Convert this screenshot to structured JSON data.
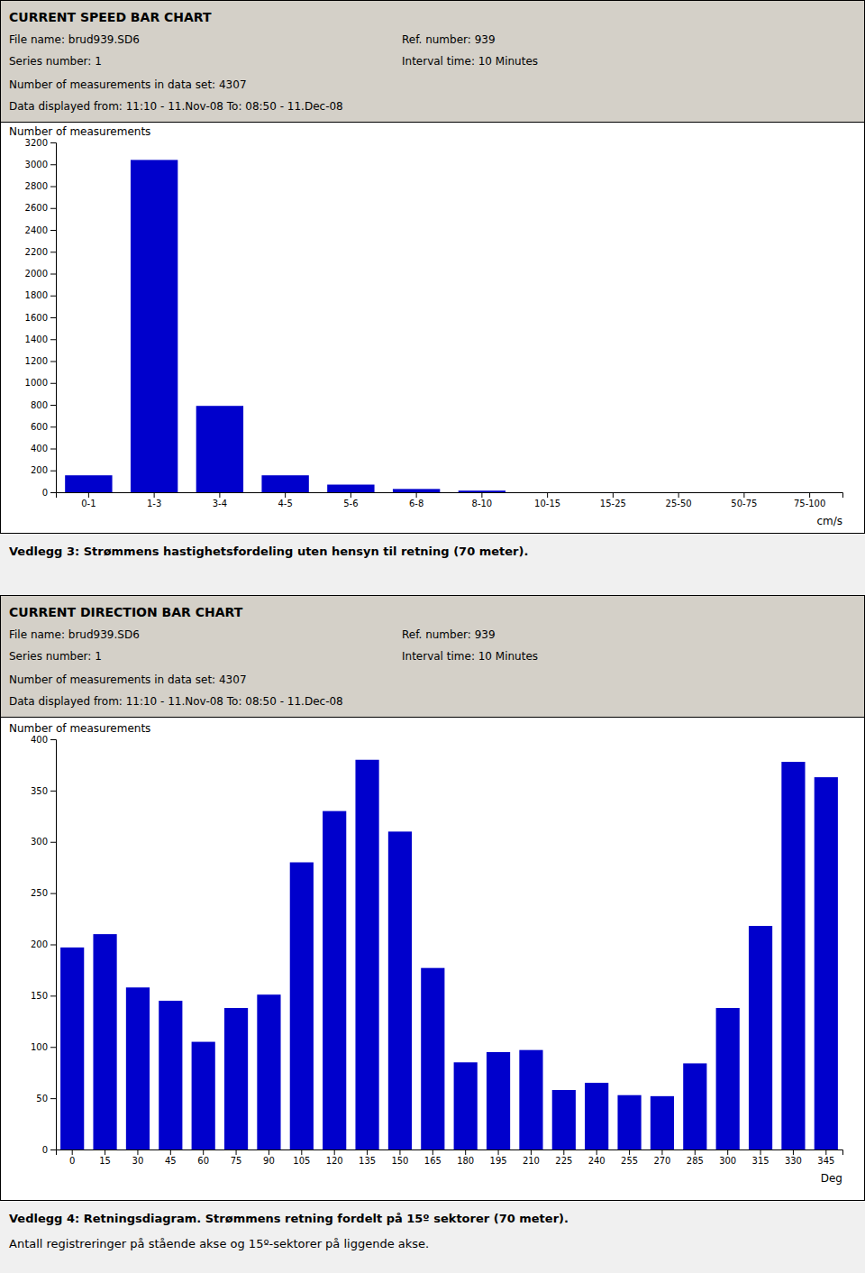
{
  "chart_data": [
    {
      "type": "bar",
      "title": "CURRENT SPEED BAR CHART",
      "subtitle": [
        "File name: brud939.SD6",
        "Series number: 1",
        "Number of measurements in data set: 4307",
        "Data displayed from: 11:10 - 11.Nov-08   To: 08:50 - 11.Dec-08",
        "Ref. number: 939",
        "Interval time: 10 Minutes"
      ],
      "ylabel": "Number of measurements",
      "xlabel": "cm/s",
      "categories": [
        "0-1",
        "1-3",
        "3-4",
        "4-5",
        "5-6",
        "6-8",
        "8-10",
        "10-15",
        "15-25",
        "25-50",
        "50-75",
        "75-100"
      ],
      "values": [
        155,
        3040,
        790,
        155,
        70,
        30,
        15,
        0,
        0,
        0,
        0,
        0
      ],
      "color": "#0000cc",
      "ylim": [
        0,
        3200
      ],
      "yticks": [
        0,
        200,
        400,
        600,
        800,
        1000,
        1200,
        1400,
        1600,
        1800,
        2000,
        2200,
        2400,
        2600,
        2800,
        3000,
        3200
      ],
      "grid": false,
      "annotations": [
        "Vedlegg 3:   Strømmens hastighetsfordeling uten hensyn til retning (70 meter)."
      ]
    },
    {
      "type": "bar",
      "title": "CURRENT DIRECTION BAR CHART",
      "subtitle": [
        "File name: brud939.SD6",
        "Series number: 1",
        "Number of measurements in data set: 4307",
        "Data displayed from: 11:10 - 11.Nov-08   To: 08:50 - 11.Dec-08",
        "Ref. number: 939",
        "Interval time: 10 Minutes"
      ],
      "ylabel": "Number of measurements",
      "xlabel": "Deg",
      "categories": [
        "0",
        "15",
        "30",
        "45",
        "60",
        "75",
        "90",
        "105",
        "120",
        "135",
        "150",
        "165",
        "180",
        "195",
        "210",
        "225",
        "240",
        "255",
        "270",
        "285",
        "300",
        "315",
        "330",
        "345"
      ],
      "values": [
        197,
        210,
        158,
        145,
        105,
        138,
        151,
        280,
        330,
        380,
        310,
        177,
        85,
        95,
        97,
        58,
        65,
        53,
        52,
        84,
        138,
        218,
        378,
        363
      ],
      "color": "#0000cc",
      "ylim": [
        0,
        400
      ],
      "yticks": [
        0,
        50,
        100,
        150,
        200,
        250,
        300,
        350,
        400
      ],
      "grid": false,
      "annotations": [
        "Vedlegg 4:   Retningsdiagram. Strømmens retning fordelt på 15º sektorer (70 meter).",
        "Antall registreringer på stående akse og 15º-sektorer på liggende akse."
      ]
    }
  ]
}
